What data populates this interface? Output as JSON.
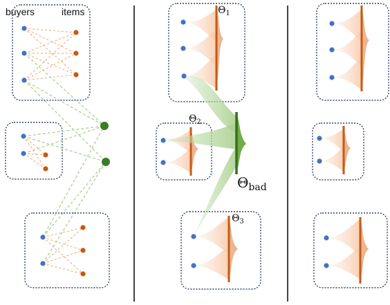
{
  "labels": {
    "buyers": "buyers",
    "items": "items",
    "theta1_sym": "Θ",
    "theta1_sub": "1",
    "theta2_sym": "Θ",
    "theta2_sub": "2",
    "theta3_sym": "Θ",
    "theta3_sub": "3",
    "thetabad_sym": "Θ",
    "thetabad_sub": "bad"
  },
  "colors": {
    "buyer": "#4472c4",
    "item": "#c55a11",
    "bad_node": "#3a7d22",
    "orange_dash": "#f4b183",
    "green_dash": "#a9d18e",
    "box_border": "#2f3f72",
    "density_fill": "#fbe5d6",
    "density_dark": "#e2a57c",
    "green_fill": "#c5e0b4",
    "bar_orange": "#c55a11",
    "bar_green": "#386f1f"
  },
  "icons": [
    "buyer-node",
    "item-node",
    "bad-buyer-node",
    "distribution-bar"
  ]
}
